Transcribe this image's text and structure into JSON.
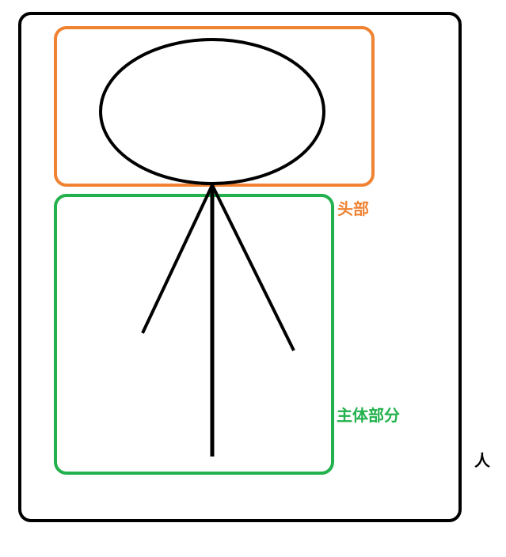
{
  "labels": {
    "head": "头部",
    "body": "主体部分",
    "person": "人"
  },
  "colors": {
    "outline": "#000000",
    "head_box": "#f08232",
    "body_box": "#22b14c"
  }
}
